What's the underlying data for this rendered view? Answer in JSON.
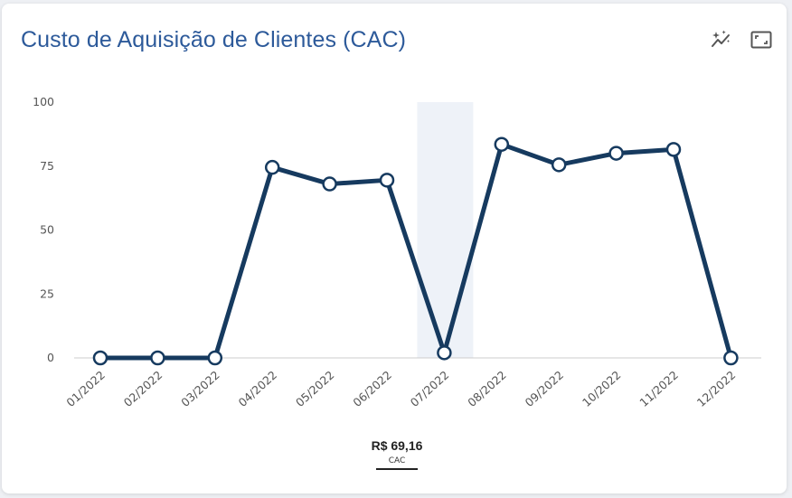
{
  "card": {
    "title": "Custo de Aquisição de Clientes (CAC)"
  },
  "toolbar": {
    "magic_icon": "sparkle-trend-icon",
    "expand_icon": "expand-icon"
  },
  "summary": {
    "value": "R$ 69,16",
    "label": "CAC"
  },
  "colors": {
    "title": "#2d5a9a",
    "line": "#163a5f",
    "highlight": "#eef2f8",
    "axis": "#cccccc"
  },
  "chart_data": {
    "type": "line",
    "categories": [
      "01/2022",
      "02/2022",
      "03/2022",
      "04/2022",
      "05/2022",
      "06/2022",
      "07/2022",
      "08/2022",
      "09/2022",
      "10/2022",
      "11/2022",
      "12/2022"
    ],
    "series": [
      {
        "values": [
          0,
          0,
          0,
          74.5,
          68,
          69.5,
          2,
          83.5,
          75.5,
          80,
          81.5,
          0
        ]
      }
    ],
    "ylim": [
      0,
      100
    ],
    "yticks": [
      0,
      25,
      50,
      75,
      100
    ],
    "highlight_category": "07/2022",
    "grid": false
  }
}
